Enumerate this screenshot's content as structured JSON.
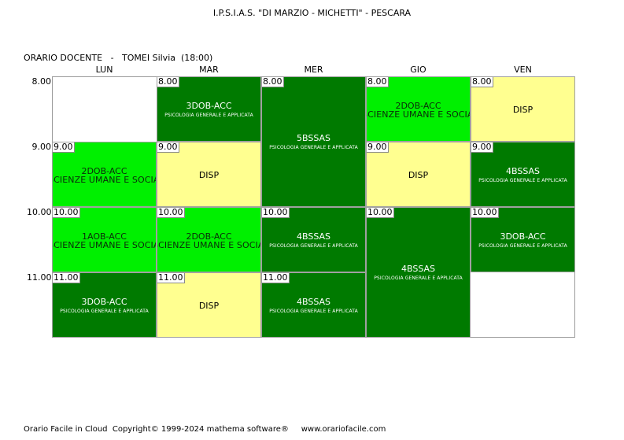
{
  "header": {
    "school": "I.P.S.I.A.S. \"DI MARZIO - MICHETTI\" - PESCARA",
    "teacher_line": "ORARIO DOCENTE   -   TOMEI Silvia  (18:00)"
  },
  "days": [
    "LUN",
    "MAR",
    "MER",
    "GIO",
    "VEN"
  ],
  "hours": [
    "8.00",
    "9.00",
    "10.00",
    "11.00"
  ],
  "cells": [
    {
      "day": 1,
      "start": 0,
      "span": 1,
      "tag": "8.00",
      "cls": "3DOB-ACC",
      "subject": "PSICOLOGIA GENERALE E APPLICATA",
      "color": "dark"
    },
    {
      "day": 2,
      "start": 0,
      "span": 2,
      "tag": "8.00",
      "cls": "5BSSAS",
      "subject": "PSICOLOGIA GENERALE E APPLICATA",
      "color": "dark"
    },
    {
      "day": 3,
      "start": 0,
      "span": 1,
      "tag": "8.00",
      "cls": "2DOB-ACC",
      "subject": "SCIENZE UMANE E SOCIALI",
      "color": "light"
    },
    {
      "day": 4,
      "start": 0,
      "span": 1,
      "tag": "8.00",
      "cls": "DISP",
      "subject": "",
      "color": "yellow"
    },
    {
      "day": 0,
      "start": 1,
      "span": 1,
      "tag": "9.00",
      "cls": "2DOB-ACC",
      "subject": "SCIENZE UMANE E SOCIALI",
      "color": "light"
    },
    {
      "day": 1,
      "start": 1,
      "span": 1,
      "tag": "9.00",
      "cls": "DISP",
      "subject": "",
      "color": "yellow"
    },
    {
      "day": 3,
      "start": 1,
      "span": 1,
      "tag": "9.00",
      "cls": "DISP",
      "subject": "",
      "color": "yellow"
    },
    {
      "day": 4,
      "start": 1,
      "span": 1,
      "tag": "9.00",
      "cls": "4BSSAS",
      "subject": "PSICOLOGIA GENERALE E APPLICATA",
      "color": "dark"
    },
    {
      "day": 0,
      "start": 2,
      "span": 1,
      "tag": "10.00",
      "cls": "1AOB-ACC",
      "subject": "SCIENZE UMANE E SOCIALI",
      "color": "light"
    },
    {
      "day": 1,
      "start": 2,
      "span": 1,
      "tag": "10.00",
      "cls": "2DOB-ACC",
      "subject": "SCIENZE UMANE E SOCIALI",
      "color": "light"
    },
    {
      "day": 2,
      "start": 2,
      "span": 1,
      "tag": "10.00",
      "cls": "4BSSAS",
      "subject": "PSICOLOGIA GENERALE E APPLICATA",
      "color": "dark"
    },
    {
      "day": 3,
      "start": 2,
      "span": 2,
      "tag": "10.00",
      "cls": "4BSSAS",
      "subject": "PSICOLOGIA GENERALE E APPLICATA",
      "color": "dark"
    },
    {
      "day": 4,
      "start": 2,
      "span": 1,
      "tag": "10.00",
      "cls": "3DOB-ACC",
      "subject": "PSICOLOGIA GENERALE E APPLICATA",
      "color": "dark"
    },
    {
      "day": 0,
      "start": 3,
      "span": 1,
      "tag": "11.00",
      "cls": "3DOB-ACC",
      "subject": "PSICOLOGIA GENERALE E APPLICATA",
      "color": "dark"
    },
    {
      "day": 1,
      "start": 3,
      "span": 1,
      "tag": "11.00",
      "cls": "DISP",
      "subject": "",
      "color": "yellow"
    },
    {
      "day": 2,
      "start": 3,
      "span": 1,
      "tag": "11.00",
      "cls": "4BSSAS",
      "subject": "PSICOLOGIA GENERALE E APPLICATA",
      "color": "dark"
    }
  ],
  "footer": "Orario Facile in Cloud  Copyright© 1999-2024 mathema software®     www.orariofacile.com"
}
